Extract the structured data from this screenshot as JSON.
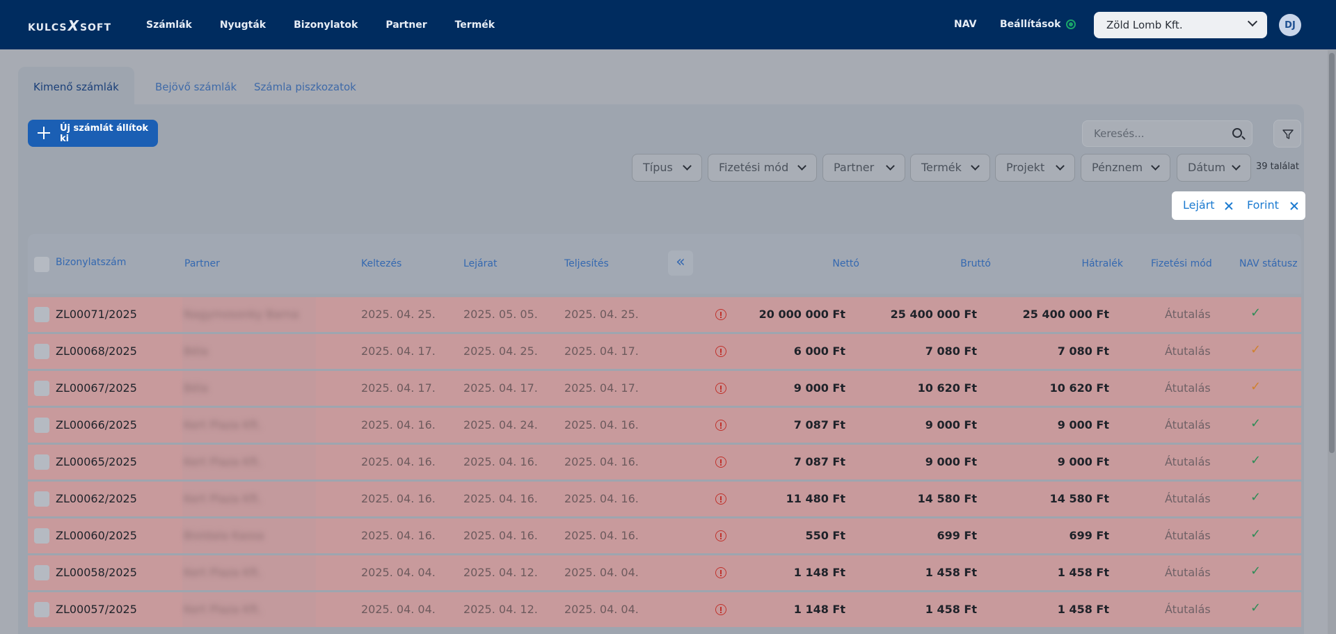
{
  "logo": {
    "text_left": "KULCS",
    "text_x": "X",
    "text_right": "SOFT"
  },
  "nav": {
    "items": [
      "Számlák",
      "Nyugták",
      "Bizonylatok",
      "Partner",
      "Termék"
    ],
    "nav_label": "NAV",
    "settings_label": "Beállítások",
    "company": "Zöld Lomb Kft.",
    "avatar": "DJ"
  },
  "tabs": [
    "Kimenő számlák",
    "Bejövő számlák",
    "Számla piszkozatok"
  ],
  "toolbar": {
    "new_invoice_label": "Új számlát állítok ki",
    "search_placeholder": "Keresés..."
  },
  "filters": [
    "Típus",
    "Fizetési mód",
    "Partner",
    "Termék",
    "Projekt",
    "Pénznem",
    "Dátum"
  ],
  "results_count": "39 találat",
  "active_chips": [
    "Lejárt",
    "Forint"
  ],
  "table": {
    "headers": {
      "number": "Bizonylatszám",
      "partner": "Partner",
      "issued": "Keltezés",
      "due": "Lejárat",
      "fulfilled": "Teljesítés",
      "net": "Nettó",
      "gross": "Bruttó",
      "outstanding": "Hátralék",
      "payment": "Fizetési mód",
      "nav_status": "NAV státusz"
    },
    "collapse_icon": "«",
    "rows": [
      {
        "number": "ZL00071/2025",
        "partner": "Nagymosonky Barna",
        "issued": "2025. 04. 25.",
        "due": "2025. 05. 05.",
        "fulfilled": "2025. 04. 25.",
        "net": "20 000 000 Ft",
        "gross": "25 400 000 Ft",
        "outstanding": "25 400 000 Ft",
        "payment": "Átutalás",
        "status": "✓",
        "status_color": "#2f8c57"
      },
      {
        "number": "ZL00068/2025",
        "partner": "Béla",
        "issued": "2025. 04. 17.",
        "due": "2025. 04. 25.",
        "fulfilled": "2025. 04. 17.",
        "net": "6 000 Ft",
        "gross": "7 080 Ft",
        "outstanding": "7 080 Ft",
        "payment": "Átutalás",
        "status": "✓",
        "status_color": "#d0812f"
      },
      {
        "number": "ZL00067/2025",
        "partner": "Béla",
        "issued": "2025. 04. 17.",
        "due": "2025. 04. 17.",
        "fulfilled": "2025. 04. 17.",
        "net": "9 000 Ft",
        "gross": "10 620 Ft",
        "outstanding": "10 620 Ft",
        "payment": "Átutalás",
        "status": "✓",
        "status_color": "#d0812f"
      },
      {
        "number": "ZL00066/2025",
        "partner": "Kert Plaza Kft.",
        "issued": "2025. 04. 16.",
        "due": "2025. 04. 24.",
        "fulfilled": "2025. 04. 16.",
        "net": "7 087 Ft",
        "gross": "9 000 Ft",
        "outstanding": "9 000 Ft",
        "payment": "Átutalás",
        "status": "✓",
        "status_color": "#2f8c57"
      },
      {
        "number": "ZL00065/2025",
        "partner": "Kert Plaza Kft.",
        "issued": "2025. 04. 16.",
        "due": "2025. 04. 16.",
        "fulfilled": "2025. 04. 16.",
        "net": "7 087 Ft",
        "gross": "9 000 Ft",
        "outstanding": "9 000 Ft",
        "payment": "Átutalás",
        "status": "✓",
        "status_color": "#2f8c57"
      },
      {
        "number": "ZL00062/2025",
        "partner": "Kert Plaza Kft.",
        "issued": "2025. 04. 16.",
        "due": "2025. 04. 16.",
        "fulfilled": "2025. 04. 16.",
        "net": "11 480 Ft",
        "gross": "14 580 Ft",
        "outstanding": "14 580 Ft",
        "payment": "Átutalás",
        "status": "✓",
        "status_color": "#2f8c57"
      },
      {
        "number": "ZL00060/2025",
        "partner": "Bioldala Kassa",
        "issued": "2025. 04. 16.",
        "due": "2025. 04. 16.",
        "fulfilled": "2025. 04. 16.",
        "net": "550 Ft",
        "gross": "699 Ft",
        "outstanding": "699 Ft",
        "payment": "Átutalás",
        "status": "✓",
        "status_color": "#2f8c57"
      },
      {
        "number": "ZL00058/2025",
        "partner": "Kert Plaza Kft.",
        "issued": "2025. 04. 04.",
        "due": "2025. 04. 12.",
        "fulfilled": "2025. 04. 04.",
        "net": "1 148 Ft",
        "gross": "1 458 Ft",
        "outstanding": "1 458 Ft",
        "payment": "Átutalás",
        "status": "✓",
        "status_color": "#2f8c57"
      },
      {
        "number": "ZL00057/2025",
        "partner": "Kert Plaza Kft.",
        "issued": "2025. 04. 04.",
        "due": "2025. 04. 12.",
        "fulfilled": "2025. 04. 04.",
        "net": "1 148 Ft",
        "gross": "1 458 Ft",
        "outstanding": "1 458 Ft",
        "payment": "Átutalás",
        "status": "✓",
        "status_color": "#2f8c57"
      }
    ]
  }
}
